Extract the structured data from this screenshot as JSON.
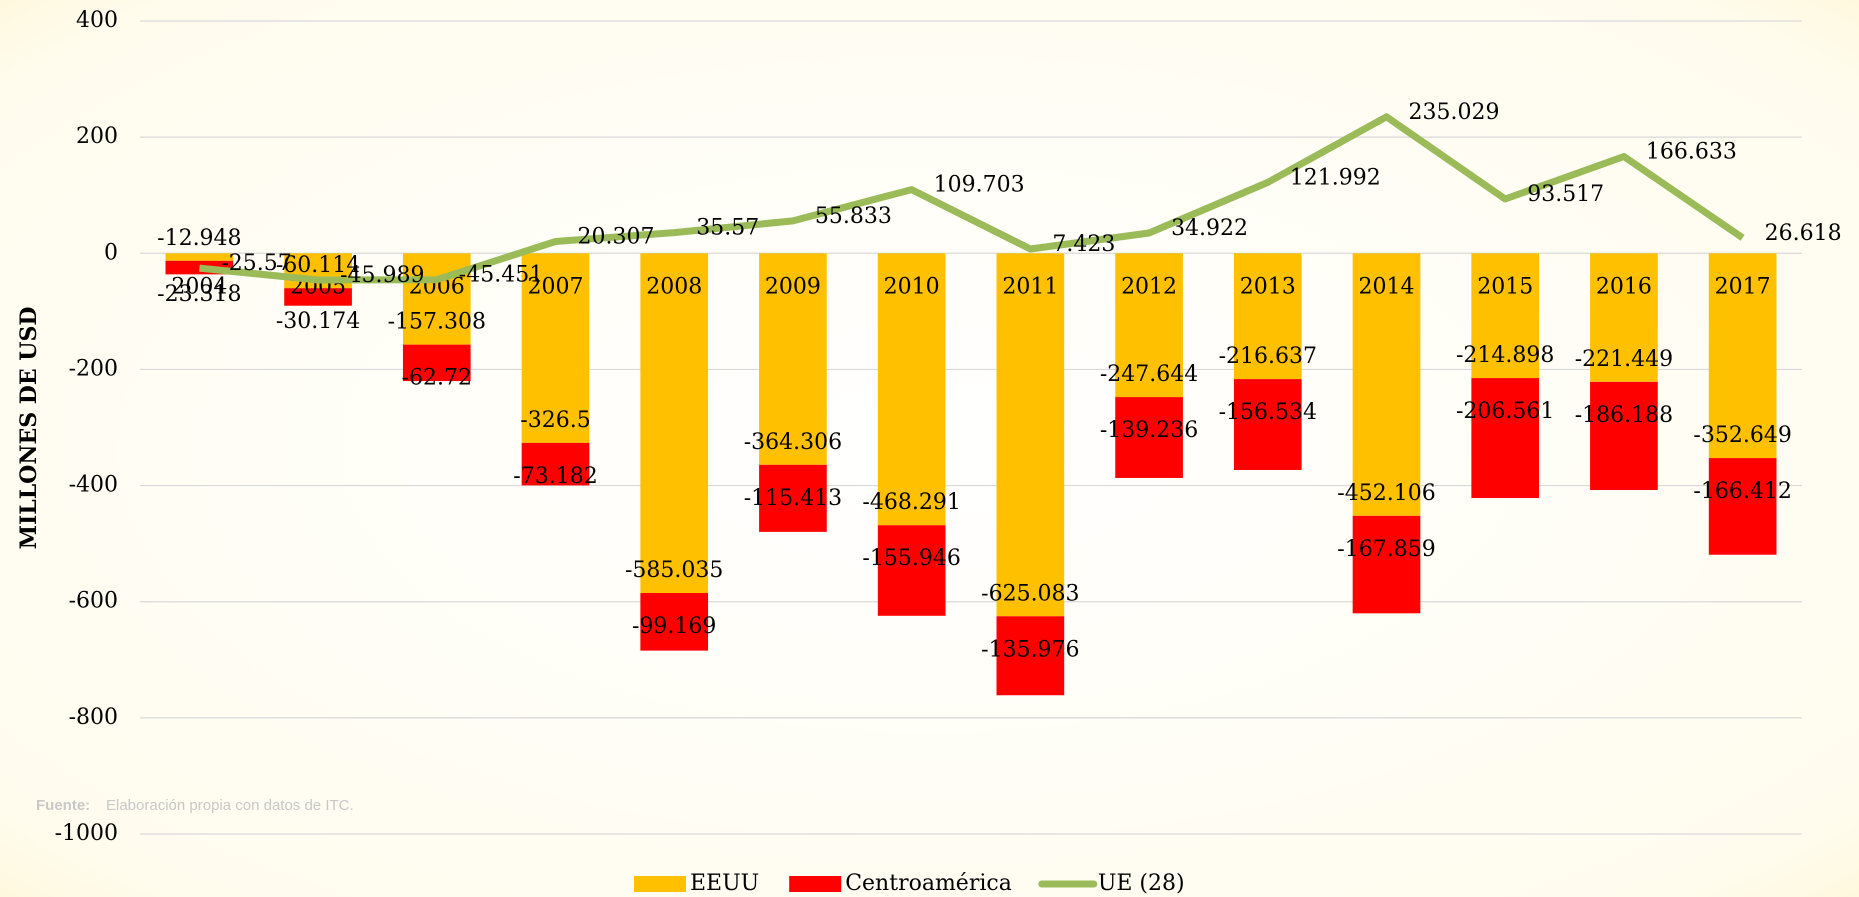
{
  "chart_data": {
    "type": "bar_line",
    "y_axis_label": "MILLONES DE USD",
    "source_label": "Fuente:",
    "source_text": "Elaboración propia con datos de ITC.",
    "categories": [
      "2004",
      "2005",
      "2006",
      "2007",
      "2008",
      "2009",
      "2010",
      "2011",
      "2012",
      "2013",
      "2014",
      "2015",
      "2016",
      "2017"
    ],
    "series": [
      {
        "name": "EEUU",
        "color": "#ffc000",
        "kind": "bar",
        "values": [
          -12.948,
          -60.114,
          -157.308,
          -326.5,
          -585.035,
          -364.306,
          -468.291,
          -625.083,
          -247.644,
          -216.637,
          -452.106,
          -214.898,
          -221.449,
          -352.649
        ]
      },
      {
        "name": "Centroamérica",
        "color": "#ff0000",
        "kind": "bar",
        "values": [
          -23.318,
          -30.174,
          -62.72,
          -73.182,
          -99.169,
          -115.413,
          -155.946,
          -135.976,
          -139.236,
          -156.534,
          -167.859,
          -206.561,
          -186.188,
          -166.412
        ]
      },
      {
        "name": "UE (28)",
        "color": "#9bbb59",
        "kind": "line",
        "values": [
          -25.57,
          -45.989,
          -45.451,
          20.307,
          35.57,
          55.833,
          109.703,
          7.423,
          34.922,
          121.992,
          235.029,
          93.517,
          166.633,
          26.618
        ]
      }
    ],
    "ylim": [
      -1000,
      400
    ],
    "yticks": [
      -1000,
      -800,
      -600,
      -400,
      -200,
      0,
      200,
      400
    ],
    "grid": true
  }
}
